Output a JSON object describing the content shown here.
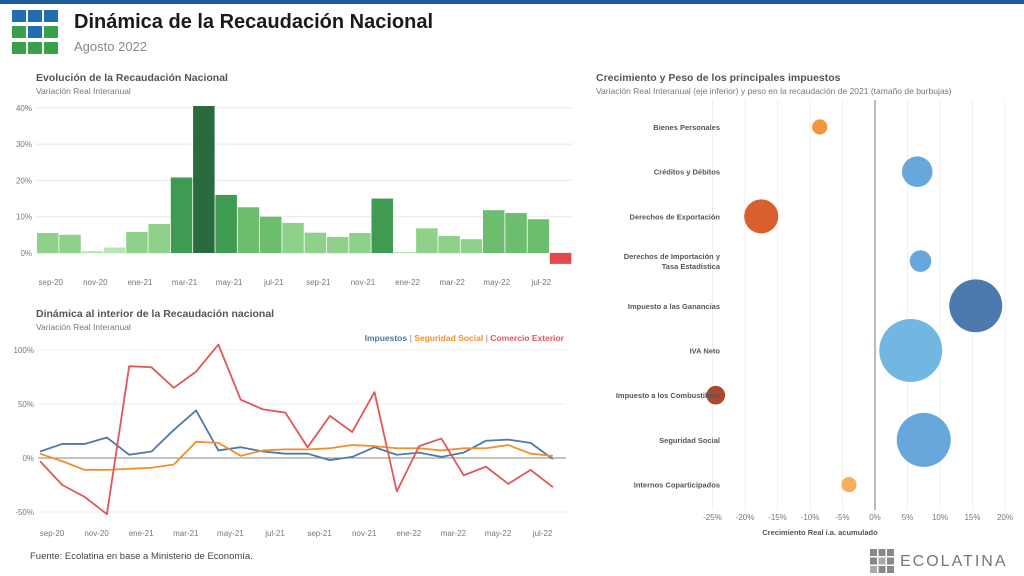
{
  "header": {
    "title": "Dinámica de la Recaudación Nacional",
    "subtitle": "Agosto 2022"
  },
  "colors": {
    "topbar": "#1f5c99",
    "logo_blue": "#1f6fb2",
    "logo_green": "#3aa04a",
    "impuestos": "#4e79a7",
    "seguridad_social": "#f28e2b",
    "comercio_exterior": "#e15759"
  },
  "panel1": {
    "title": "Evolución de la Recaudación Nacional",
    "subtitle": "Variación Real Interanual"
  },
  "panel2": {
    "title": "Dinámica al interior de la Recaudación nacional",
    "subtitle": "Variación Real Interanual",
    "legend": {
      "impuestos": "Impuestos",
      "sep1": " | ",
      "seguridad_social": "Seguridad Social",
      "sep2": " | ",
      "comercio_exterior": "Comercio Exterior"
    }
  },
  "panel3": {
    "title": "Crecimiento y Peso de los principales impuestos",
    "subtitle": "Variación Real Interanual (eje inferior) y peso en la recaudación de 2021 (tamaño de burbujas)"
  },
  "footer": {
    "source": "Fuente: Ecolatina en base a Ministerio de Economía.",
    "brand": "ECOLATINA"
  },
  "chart_data": [
    {
      "type": "bar",
      "title": "Evolución de la Recaudación Nacional",
      "subtitle": "Variación Real Interanual",
      "tick_labels": [
        "sep-20",
        "nov-20",
        "ene-21",
        "mar-21",
        "may-21",
        "jul-21",
        "sep-21",
        "nov-21",
        "ene-22",
        "mar-22",
        "may-22",
        "jul-22"
      ],
      "y_ticks": [
        "0%",
        "10%",
        "20%",
        "30%",
        "40%"
      ],
      "ylim": [
        -3,
        41
      ],
      "categories": [
        "sep-20",
        "oct-20",
        "nov-20",
        "dic-20",
        "ene-21",
        "feb-21",
        "mar-21",
        "abr-21",
        "may-21",
        "jun-21",
        "jul-21",
        "ago-21",
        "sep-21",
        "oct-21",
        "nov-21",
        "dic-21",
        "ene-22",
        "feb-22",
        "mar-22",
        "abr-22",
        "may-22",
        "jun-22",
        "jul-22",
        "ago-22"
      ],
      "values": [
        5.5,
        5.0,
        0.5,
        1.5,
        5.8,
        8.0,
        20.8,
        40.5,
        16.0,
        12.6,
        10.0,
        8.3,
        5.6,
        4.4,
        5.5,
        15.0,
        0.3,
        6.8,
        4.7,
        3.8,
        11.8,
        11.0,
        9.3,
        -3.0
      ]
    },
    {
      "type": "line",
      "title": "Dinámica al interior de la Recaudación nacional",
      "subtitle": "Variación Real Interanual",
      "x": [
        "sep-20",
        "oct-20",
        "nov-20",
        "dic-20",
        "ene-21",
        "feb-21",
        "mar-21",
        "abr-21",
        "may-21",
        "jun-21",
        "jul-21",
        "ago-21",
        "sep-21",
        "oct-21",
        "nov-21",
        "dic-21",
        "ene-22",
        "feb-22",
        "mar-22",
        "abr-22",
        "may-22",
        "jun-22",
        "jul-22",
        "ago-22"
      ],
      "tick_labels": [
        "sep-20",
        "nov-20",
        "ene-21",
        "mar-21",
        "may-21",
        "jul-21",
        "sep-21",
        "nov-21",
        "ene-22",
        "mar-22",
        "may-22",
        "jul-22"
      ],
      "y_ticks": [
        "100%",
        "50%",
        "0%",
        "-50%"
      ],
      "ylim": [
        -50,
        110
      ],
      "series": [
        {
          "name": "Impuestos",
          "values": [
            6,
            13,
            13,
            19,
            3,
            6,
            26,
            44,
            7,
            10,
            6,
            4,
            4,
            -2,
            1,
            10,
            3,
            5,
            1,
            5,
            16,
            17,
            14,
            -1
          ]
        },
        {
          "name": "Seguridad Social",
          "values": [
            4,
            -3,
            -11,
            -11,
            -10,
            -9,
            -6,
            15,
            14,
            2,
            7,
            8,
            8,
            9,
            12,
            11,
            9,
            9,
            7,
            9,
            9,
            12,
            4,
            2
          ]
        },
        {
          "name": "Comercio Exterior",
          "values": [
            -3,
            -25,
            -36,
            -52,
            85,
            84,
            65,
            80,
            105,
            54,
            45,
            42,
            10,
            39,
            24,
            61,
            -31,
            11,
            18,
            -16,
            -8,
            -24,
            -11,
            -27
          ]
        }
      ]
    },
    {
      "type": "scatter",
      "title": "Crecimiento y Peso de los principales impuestos",
      "subtitle": "Variación Real Interanual (eje inferior) y peso en la recaudación de 2021 (tamaño de burbujas)",
      "xlabel": "Crecimiento Real i.a. acumulado",
      "x_ticks": [
        "-25%",
        "-20%",
        "-15%",
        "-10%",
        "-5%",
        "0%",
        "5%",
        "10%",
        "15%",
        "20%"
      ],
      "xlim": [
        -27,
        21
      ],
      "points": [
        {
          "label": "Bienes Personales",
          "x": -8.5,
          "weight": 2.0,
          "color": "#f28e2b"
        },
        {
          "label": "Créditos y Débitos",
          "x": 6.5,
          "weight": 8.0,
          "color": "#5aa0d8"
        },
        {
          "label": "Derechos de Exportación",
          "x": -17.5,
          "weight": 10.0,
          "color": "#d4531c"
        },
        {
          "label": "Derechos de Importación y Tasa Estadística",
          "x": 7.0,
          "weight": 4.0,
          "color": "#5aa0d8"
        },
        {
          "label": "Impuesto a las Ganancias",
          "x": 15.5,
          "weight": 24.0,
          "color": "#3d6fa8"
        },
        {
          "label": "IVA Neto",
          "x": 5.5,
          "weight": 34.0,
          "color": "#66b0e0"
        },
        {
          "label": "Impuesto a los Combustibles",
          "x": -24.5,
          "weight": 3.0,
          "color": "#a33a1c"
        },
        {
          "label": "Seguridad Social",
          "x": 7.5,
          "weight": 25.0,
          "color": "#5aa0d8"
        },
        {
          "label": "Internos Coparticipados",
          "x": -4.0,
          "weight": 2.0,
          "color": "#f5a94e"
        }
      ]
    }
  ]
}
